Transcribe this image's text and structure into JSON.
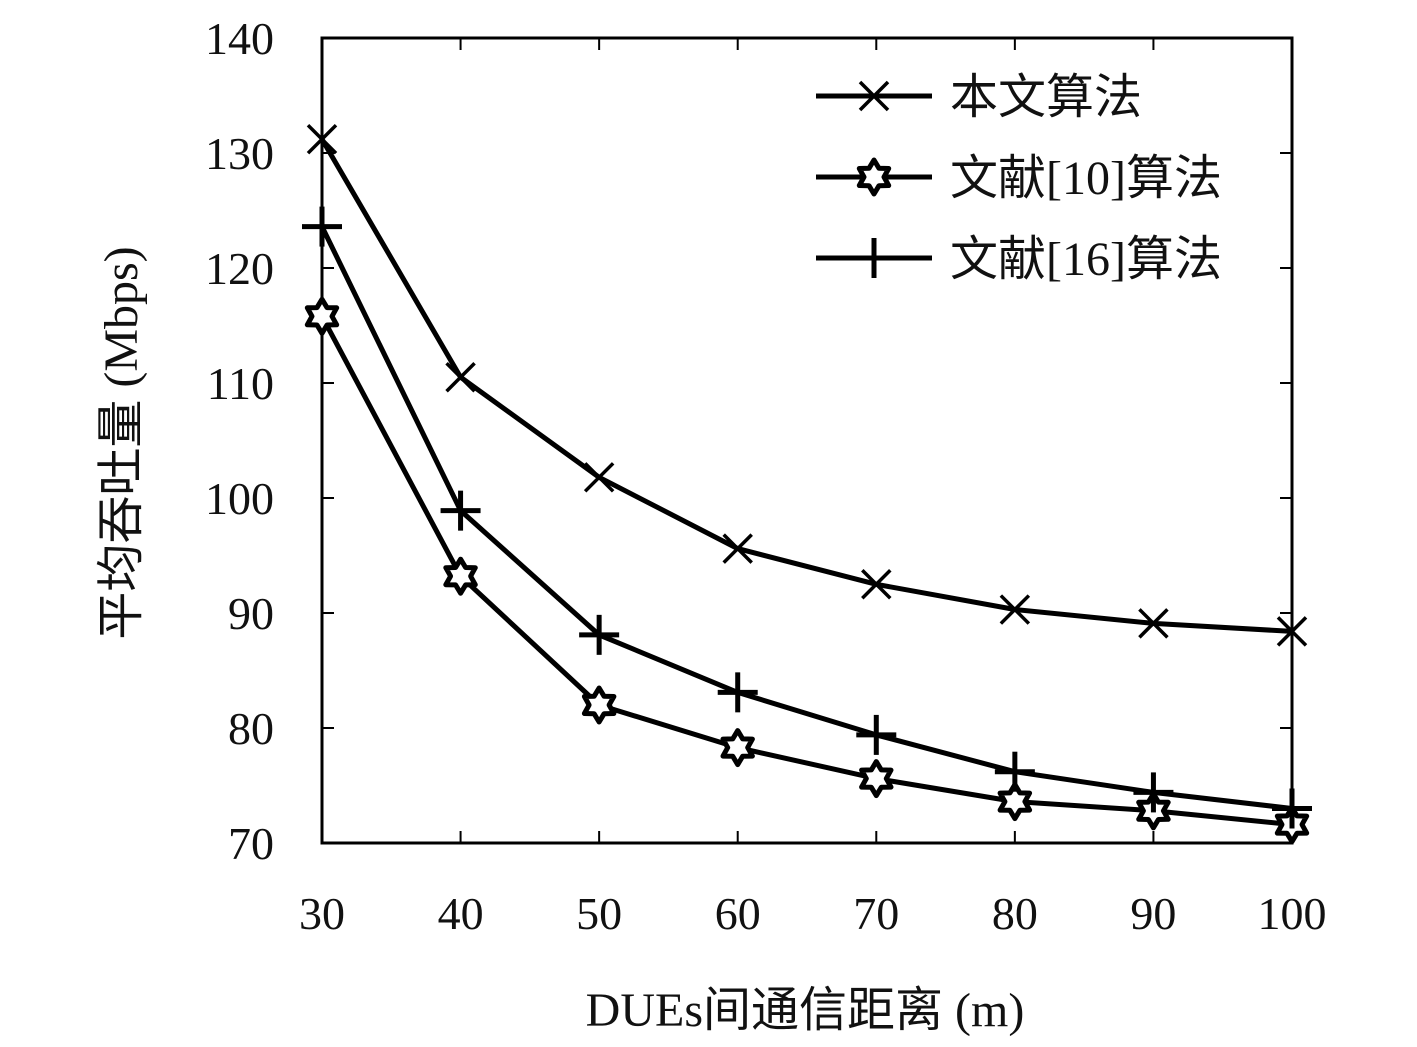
{
  "chart_data": {
    "type": "line",
    "xlabel": "DUEs间通信距离 (m)",
    "ylabel": "平均吞吐量 (Mbps)",
    "x": [
      30,
      40,
      50,
      60,
      70,
      80,
      90,
      100
    ],
    "xlim": [
      30,
      100
    ],
    "ylim": [
      70,
      140
    ],
    "xticks": [
      "30",
      "40",
      "50",
      "60",
      "70",
      "80",
      "90",
      "100"
    ],
    "yticks": [
      "70",
      "80",
      "90",
      "100",
      "110",
      "120",
      "130",
      "140"
    ],
    "grid": false,
    "legend_position": "top-right",
    "color": "#000000",
    "series": [
      {
        "name": "本文算法",
        "marker": "x",
        "values": [
          131.2,
          110.5,
          101.8,
          95.6,
          92.5,
          90.3,
          89.1,
          88.4
        ]
      },
      {
        "name": "文献[10]算法",
        "marker": "star",
        "values": [
          115.8,
          93.2,
          82.0,
          78.3,
          75.6,
          73.6,
          72.8,
          71.6
        ]
      },
      {
        "name": "文献[16]算法",
        "marker": "plus",
        "values": [
          123.6,
          98.9,
          88.1,
          83.1,
          79.4,
          76.2,
          74.4,
          73.0
        ]
      }
    ]
  }
}
